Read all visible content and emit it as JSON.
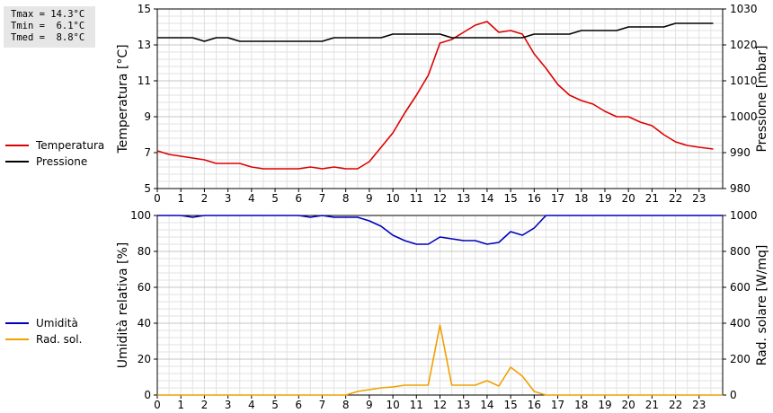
{
  "stats": {
    "tmax": "Tmax = 14.3°C",
    "tmin": "Tmin =  6.1°C",
    "tmed": "Tmed =  8.8°C"
  },
  "legend_top": [
    {
      "label": "Temperatura",
      "color": "#dd0000"
    },
    {
      "label": "Pressione",
      "color": "#000000"
    }
  ],
  "legend_bottom": [
    {
      "label": "Umidità",
      "color": "#0000bb"
    },
    {
      "label": "Rad. sol.",
      "color": "#f0a000"
    }
  ],
  "chart_data": [
    {
      "type": "line",
      "xlim": [
        0,
        24
      ],
      "x_ticks": [
        0,
        1,
        2,
        3,
        4,
        5,
        6,
        7,
        8,
        9,
        10,
        11,
        12,
        13,
        14,
        15,
        16,
        17,
        18,
        19,
        20,
        21,
        22,
        23
      ],
      "ylabel_left": "Temperatura [°C]",
      "ylim_left": [
        5,
        15
      ],
      "yticks_left": [
        5,
        7,
        9,
        11,
        13,
        15
      ],
      "ylabel_right": "Pressione [mbar]",
      "ylim_right": [
        980,
        1030
      ],
      "yticks_right": [
        980,
        990,
        1000,
        1010,
        1020,
        1030
      ],
      "grid": true,
      "series": [
        {
          "name": "Temperatura",
          "axis": "left",
          "color": "#dd0000",
          "x": [
            0,
            0.5,
            1,
            1.5,
            2,
            2.5,
            3,
            3.5,
            4,
            4.5,
            5,
            5.5,
            6,
            6.5,
            7,
            7.5,
            8,
            8.5,
            9,
            9.5,
            10,
            10.5,
            11,
            11.5,
            12,
            12.5,
            13,
            13.5,
            14,
            14.5,
            15,
            15.5,
            16,
            16.5,
            17,
            17.5,
            18,
            18.5,
            19,
            19.5,
            20,
            20.5,
            21,
            21.5,
            22,
            22.5,
            23,
            23.6
          ],
          "y": [
            7.1,
            6.9,
            6.8,
            6.7,
            6.6,
            6.4,
            6.4,
            6.4,
            6.2,
            6.1,
            6.1,
            6.1,
            6.1,
            6.2,
            6.1,
            6.2,
            6.1,
            6.1,
            6.5,
            7.3,
            8.1,
            9.2,
            10.2,
            11.3,
            13.1,
            13.3,
            13.7,
            14.1,
            14.3,
            13.7,
            13.8,
            13.6,
            12.5,
            11.7,
            10.8,
            10.2,
            9.9,
            9.7,
            9.3,
            9.0,
            9.0,
            8.7,
            8.5,
            8.0,
            7.6,
            7.4,
            7.3,
            7.2
          ]
        },
        {
          "name": "Pressione",
          "axis": "right",
          "color": "#000000",
          "x": [
            0,
            1.5,
            2,
            2.5,
            3,
            3.5,
            4,
            6,
            6.5,
            7,
            7.5,
            9.5,
            10,
            12,
            12.5,
            15,
            15.5,
            16,
            17.5,
            18,
            19.5,
            20,
            21.5,
            22,
            23.6
          ],
          "y": [
            1022,
            1022,
            1021,
            1022,
            1022,
            1021,
            1021,
            1021,
            1021,
            1021,
            1022,
            1022,
            1023,
            1023,
            1022,
            1022,
            1022,
            1023,
            1023,
            1024,
            1024,
            1025,
            1025,
            1026,
            1026
          ]
        }
      ]
    },
    {
      "type": "line",
      "xlim": [
        0,
        24
      ],
      "x_ticks": [
        0,
        1,
        2,
        3,
        4,
        5,
        6,
        7,
        8,
        9,
        10,
        11,
        12,
        13,
        14,
        15,
        16,
        17,
        18,
        19,
        20,
        21,
        22,
        23
      ],
      "ylabel_left": "Umidità relativa [%]",
      "ylim_left": [
        0,
        100
      ],
      "yticks_left": [
        0,
        20,
        40,
        60,
        80,
        100
      ],
      "ylabel_right": "Rad. solare [W/mq]",
      "ylim_right": [
        0,
        1000
      ],
      "yticks_right": [
        0,
        200,
        400,
        600,
        800,
        1000
      ],
      "grid": true,
      "series": [
        {
          "name": "Umidità",
          "axis": "left",
          "color": "#0000bb",
          "x": [
            0,
            1,
            1.5,
            2,
            6,
            6.5,
            7,
            7.5,
            8.5,
            9,
            9.5,
            10,
            10.5,
            11,
            11.5,
            12,
            12.5,
            13,
            13.5,
            14,
            14.5,
            15,
            15.5,
            16,
            16.5,
            24
          ],
          "y": [
            100,
            100,
            99,
            100,
            100,
            99,
            100,
            99,
            99,
            97,
            94,
            89,
            86,
            84,
            84,
            88,
            87,
            86,
            86,
            84,
            85,
            91,
            89,
            93,
            100,
            100
          ]
        },
        {
          "name": "Rad. sol.",
          "axis": "right",
          "color": "#f0a000",
          "x": [
            0,
            8,
            8.5,
            9,
            9.5,
            10,
            10.5,
            11,
            11.5,
            12,
            12.5,
            13,
            13.5,
            14,
            14.5,
            15,
            15.5,
            16,
            16.5,
            24
          ],
          "y": [
            0,
            0,
            20,
            30,
            40,
            45,
            55,
            55,
            55,
            390,
            55,
            55,
            55,
            80,
            50,
            155,
            105,
            20,
            0,
            0
          ]
        }
      ]
    }
  ]
}
